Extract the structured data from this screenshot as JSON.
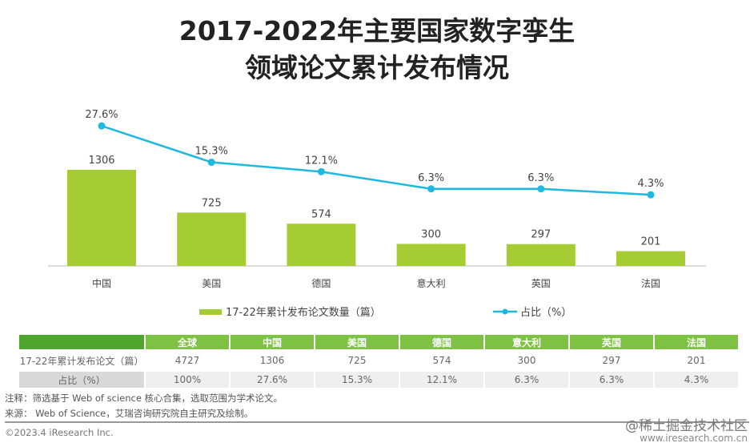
{
  "title_lines": [
    "2017-2022年主要国家数字孪生",
    "领域论文累计发布情况"
  ],
  "chart_data": {
    "type": "bar+line",
    "categories": [
      "中国",
      "美国",
      "德国",
      "意大利",
      "英国",
      "法国"
    ],
    "series": [
      {
        "name": "17-22年累计发布论文数量（篇）",
        "type": "bar",
        "color": "#a6cc33",
        "values": [
          1306,
          725,
          574,
          300,
          297,
          201
        ],
        "labels": [
          "1306",
          "725",
          "574",
          "300",
          "297",
          "201"
        ]
      },
      {
        "name": "占比（%）",
        "type": "line",
        "color": "#1fb8e0",
        "values": [
          27.6,
          15.3,
          12.1,
          6.3,
          6.3,
          4.3
        ],
        "labels": [
          "27.6%",
          "15.3%",
          "12.1%",
          "6.3%",
          "6.3%",
          "4.3%"
        ]
      }
    ],
    "legend_position": "bottom",
    "grid": false
  },
  "table": {
    "header": [
      "",
      "全球",
      "中国",
      "美国",
      "德国",
      "意大利",
      "英国",
      "法国"
    ],
    "rows": [
      [
        "17-22年累计发布论文（篇）",
        "4727",
        "1306",
        "725",
        "574",
        "300",
        "297",
        "201"
      ],
      [
        "占比（%）",
        "100%",
        "27.6%",
        "15.3%",
        "12.1%",
        "6.3%",
        "6.3%",
        "4.3%"
      ]
    ]
  },
  "notes": [
    "注释：筛选基于 Web of science 核心合集，选取范围为学术论文。",
    "来源：  Web of Science，艾瑞咨询研究院自主研究及绘制。"
  ],
  "copyright": "©2023.4 iResearch Inc.",
  "watermark": "@稀土掘金技术社区",
  "site": "www.iresearch.com.cn"
}
